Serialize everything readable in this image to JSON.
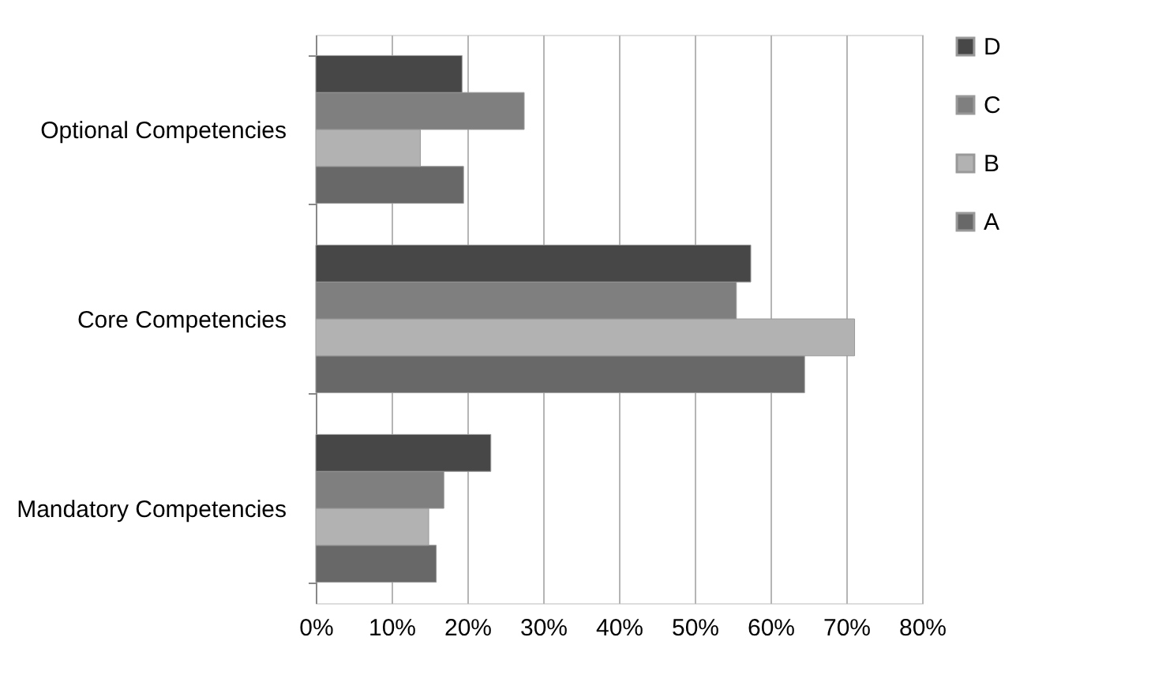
{
  "chart_data": {
    "type": "bar",
    "orientation": "horizontal",
    "categories": [
      "Optional Competencies",
      "Core Competencies",
      "Mandatory Competencies"
    ],
    "series": [
      {
        "name": "A",
        "color": "#686868",
        "values": [
          19.5,
          64.5,
          15.9
        ]
      },
      {
        "name": "B",
        "color": "#b2b2b2",
        "values": [
          13.8,
          71.1,
          14.9
        ]
      },
      {
        "name": "C",
        "color": "#7f7f7f",
        "values": [
          27.5,
          55.5,
          16.9
        ]
      },
      {
        "name": "D",
        "color": "#474747",
        "values": [
          19.3,
          57.4,
          23.1
        ]
      }
    ],
    "xlim": [
      0,
      80
    ],
    "xticks": [
      {
        "value": 0,
        "label": "0%"
      },
      {
        "value": 10,
        "label": "10%"
      },
      {
        "value": 20,
        "label": "20%"
      },
      {
        "value": 30,
        "label": "30%"
      },
      {
        "value": 40,
        "label": "40%"
      },
      {
        "value": 50,
        "label": "50%"
      },
      {
        "value": 60,
        "label": "60%"
      },
      {
        "value": 70,
        "label": "70%"
      },
      {
        "value": 80,
        "label": "80%"
      }
    ],
    "grid": "x",
    "legend": "right"
  }
}
